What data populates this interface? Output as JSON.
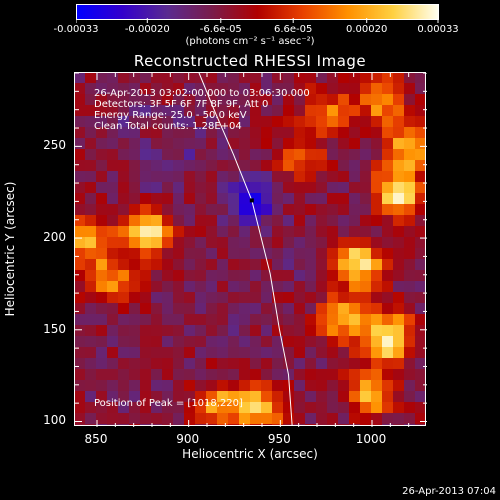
{
  "colorbar": {
    "colors": [
      "#0000ff",
      "#3300cc",
      "#5a2a90",
      "#7a1c4a",
      "#b00000",
      "#e84000",
      "#ff9000",
      "#ffd040",
      "#fffff0"
    ],
    "tick_labels": [
      "-0.00033",
      "-0.00020",
      "-6.6e-05",
      "6.6e-05",
      "0.00020",
      "0.00033"
    ],
    "tick_values": [
      -0.00033,
      -0.0002,
      -6.6e-05,
      6.6e-05,
      0.0002,
      0.00033
    ],
    "units_label": "(photons cm⁻² s⁻¹ asec⁻²)",
    "range": [
      -0.00033,
      0.00033
    ]
  },
  "title": "Reconstructed RHESSI Image",
  "annotations": {
    "time_range": "26-Apr-2013 03:02:00.000 to 03:06:30.000",
    "detectors": "Detectors: 3F 5F 6F 7F 8F 9F, Att 0",
    "energy": "Energy Range: 25.0 - 50.0 keV",
    "clean": "Clean     Total counts: 1.28E+04",
    "peak": "Position of Peak = [1018,220]"
  },
  "footer": {
    "timestamp": "26-Apr-2013 07:04"
  },
  "chart_data": {
    "type": "heatmap",
    "title": "Reconstructed RHESSI Image",
    "xlabel": "Heliocentric X (arcsec)",
    "ylabel": "Heliocentric Y (arcsec)",
    "xlim": [
      838,
      1030
    ],
    "ylim": [
      97,
      290
    ],
    "x_ticks": [
      850,
      900,
      950,
      1000
    ],
    "y_ticks": [
      100,
      150,
      200,
      250
    ],
    "grid": false,
    "peak_position": [
      1018,
      220
    ],
    "limb_curve": [
      [
        906,
        290
      ],
      [
        915,
        268
      ],
      [
        925,
        245
      ],
      [
        935,
        220
      ],
      [
        945,
        180
      ],
      [
        950,
        150
      ],
      [
        955,
        125
      ],
      [
        957,
        97
      ]
    ],
    "bright_sources": [
      {
        "x": 878,
        "y": 203,
        "value": 0.0003
      },
      {
        "x": 845,
        "y": 200,
        "value": 0.0002
      },
      {
        "x": 858,
        "y": 178,
        "value": 0.00016
      },
      {
        "x": 1015,
        "y": 225,
        "value": 0.0003
      },
      {
        "x": 1020,
        "y": 250,
        "value": 0.00022
      },
      {
        "x": 993,
        "y": 185,
        "value": 0.0003
      },
      {
        "x": 1010,
        "y": 145,
        "value": 0.00033
      },
      {
        "x": 985,
        "y": 155,
        "value": 0.0002
      },
      {
        "x": 1000,
        "y": 115,
        "value": 0.00022
      },
      {
        "x": 940,
        "y": 107,
        "value": 0.00022
      },
      {
        "x": 918,
        "y": 108,
        "value": 0.00018
      },
      {
        "x": 975,
        "y": 268,
        "value": 0.00014
      },
      {
        "x": 1005,
        "y": 275,
        "value": 0.00018
      },
      {
        "x": 960,
        "y": 245,
        "value": 0.0001
      }
    ],
    "dim_sources": [
      {
        "x": 935,
        "y": 220,
        "value": -0.00033
      },
      {
        "x": 900,
        "y": 250,
        "value": -0.00015
      },
      {
        "x": 880,
        "y": 235,
        "value": -0.00014
      },
      {
        "x": 965,
        "y": 190,
        "value": -0.00012
      },
      {
        "x": 925,
        "y": 155,
        "value": -0.0001
      },
      {
        "x": 860,
        "y": 120,
        "value": -0.0001
      },
      {
        "x": 870,
        "y": 265,
        "value": -0.00012
      }
    ],
    "background_value": -7e-05
  }
}
